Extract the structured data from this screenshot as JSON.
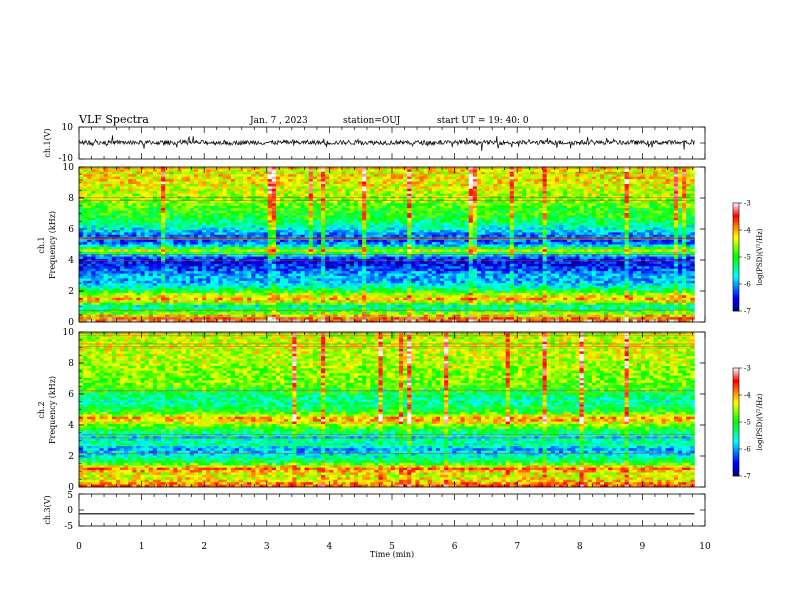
{
  "header": {
    "title": "VLF Spectra",
    "date": "Jan. 7 , 2023",
    "station": "station=OUJ",
    "start": "start UT =  19: 40: 0"
  },
  "chart_data": [
    {
      "type": "line",
      "name": "ch1-waveform",
      "ylabel": "ch.1(V)",
      "ylim": [
        -10,
        10
      ],
      "y_ticks": [
        "10",
        "-10"
      ],
      "xlim": [
        0,
        10
      ],
      "grid": false
    },
    {
      "type": "heatmap",
      "name": "ch1-spectrogram",
      "ylabel": "ch.1\nFrequency (kHz)",
      "ylabel_top": "ch.1",
      "ylabel_main": "Frequency (kHz)",
      "xlim": [
        0,
        9.83
      ],
      "ylim": [
        0,
        10
      ],
      "y_ticks": [
        "0",
        "2",
        "4",
        "6",
        "8",
        "10"
      ],
      "colorbar": {
        "label": "log(PSD)(V²/Hz)",
        "range": [
          -7,
          -3
        ],
        "ticks": [
          "-3",
          "-4",
          "-5",
          "-6",
          "-7"
        ]
      },
      "level_profile": [
        {
          "f": 0.0,
          "v": -3.3
        },
        {
          "f": 0.3,
          "v": -3.8
        },
        {
          "f": 0.6,
          "v": -4.8
        },
        {
          "f": 1.0,
          "v": -5.6
        },
        {
          "f": 1.4,
          "v": -3.9
        },
        {
          "f": 1.8,
          "v": -4.6
        },
        {
          "f": 2.2,
          "v": -5.5
        },
        {
          "f": 2.6,
          "v": -6.0
        },
        {
          "f": 3.0,
          "v": -5.9
        },
        {
          "f": 3.4,
          "v": -6.3
        },
        {
          "f": 3.8,
          "v": -6.6
        },
        {
          "f": 4.2,
          "v": -6.3
        },
        {
          "f": 4.6,
          "v": -4.4
        },
        {
          "f": 5.0,
          "v": -6.1
        },
        {
          "f": 5.4,
          "v": -6.4
        },
        {
          "f": 5.8,
          "v": -5.9
        },
        {
          "f": 6.2,
          "v": -5.5
        },
        {
          "f": 6.8,
          "v": -5.0
        },
        {
          "f": 7.4,
          "v": -4.9
        },
        {
          "f": 8.0,
          "v": -4.6
        },
        {
          "f": 8.6,
          "v": -4.4
        },
        {
          "f": 9.2,
          "v": -4.2
        },
        {
          "f": 10.0,
          "v": -4.3
        }
      ]
    },
    {
      "type": "heatmap",
      "name": "ch2-spectrogram",
      "ylabel_top": "ch.2",
      "ylabel_main": "Frequency (kHz)",
      "xlim": [
        0,
        9.83
      ],
      "ylim": [
        0,
        10
      ],
      "y_ticks": [
        "0",
        "2",
        "4",
        "6",
        "8",
        "10"
      ],
      "colorbar": {
        "label": "log(PSD)(V²/Hz)",
        "range": [
          -7,
          -3
        ],
        "ticks": [
          "-3",
          "-4",
          "-5",
          "-6",
          "-7"
        ]
      },
      "level_profile": [
        {
          "f": 0.0,
          "v": -3.6
        },
        {
          "f": 0.4,
          "v": -4.2
        },
        {
          "f": 0.8,
          "v": -4.4
        },
        {
          "f": 1.2,
          "v": -3.8
        },
        {
          "f": 1.6,
          "v": -5.2
        },
        {
          "f": 2.0,
          "v": -5.6
        },
        {
          "f": 2.4,
          "v": -6.0
        },
        {
          "f": 2.8,
          "v": -5.4
        },
        {
          "f": 3.2,
          "v": -5.7
        },
        {
          "f": 3.6,
          "v": -5.2
        },
        {
          "f": 4.0,
          "v": -4.6
        },
        {
          "f": 4.4,
          "v": -3.9
        },
        {
          "f": 4.8,
          "v": -4.9
        },
        {
          "f": 5.2,
          "v": -5.3
        },
        {
          "f": 5.6,
          "v": -5.5
        },
        {
          "f": 6.0,
          "v": -5.2
        },
        {
          "f": 6.6,
          "v": -4.7
        },
        {
          "f": 7.2,
          "v": -4.7
        },
        {
          "f": 8.0,
          "v": -4.5
        },
        {
          "f": 8.8,
          "v": -4.4
        },
        {
          "f": 10.0,
          "v": -4.5
        }
      ]
    },
    {
      "type": "line",
      "name": "ch3-waveform",
      "ylabel": "ch.3(V)",
      "ylim": [
        -5,
        5
      ],
      "y_ticks": [
        "5",
        "0",
        "-5"
      ],
      "constant_value": -1.2,
      "xlabel": "Time (min)",
      "xlim": [
        0,
        10
      ],
      "x_ticks": [
        "0",
        "1",
        "2",
        "3",
        "4",
        "5",
        "6",
        "7",
        "8",
        "9",
        "10"
      ]
    }
  ],
  "colors": {
    "colormap": [
      "#000080",
      "#0000ff",
      "#00ffff",
      "#00ff00",
      "#ffff00",
      "#ff0000",
      "#ffffff"
    ]
  }
}
